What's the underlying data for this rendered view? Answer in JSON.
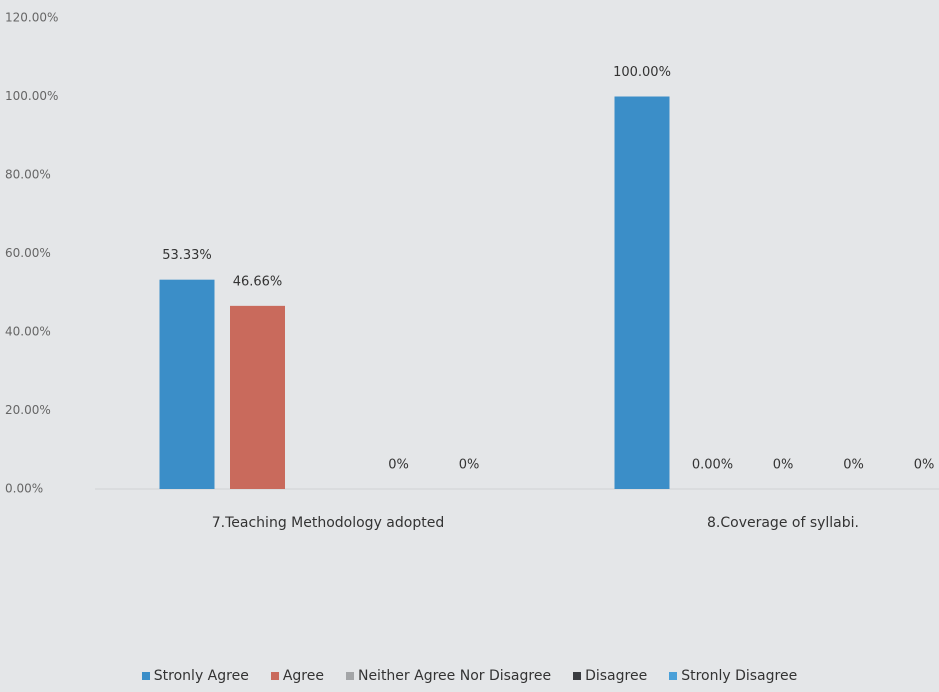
{
  "chart_data": {
    "type": "bar",
    "categories": [
      "7.Teaching Methodology adopted",
      "8.Coverage of syllabi."
    ],
    "series": [
      {
        "name": "Stronly Agree",
        "color": "#3b8ec8",
        "values": [
          53.33,
          100
        ],
        "value_labels": [
          "53.33%",
          "100.00%"
        ]
      },
      {
        "name": "Agree",
        "color": "#c96a5c",
        "values": [
          46.66,
          0
        ],
        "value_labels": [
          "46.66%",
          "0.00%"
        ]
      },
      {
        "name": "Neither Agree Nor Disagree",
        "color": "#a3a5a7",
        "values": [
          0,
          0
        ],
        "value_labels": [
          null,
          "0%"
        ]
      },
      {
        "name": "Disagree",
        "color": "#3a3c40",
        "values": [
          0,
          0
        ],
        "value_labels": [
          "0%",
          "0%"
        ]
      },
      {
        "name": "Stronly Disagree",
        "color": "#4aa0d8",
        "values": [
          0,
          0
        ],
        "value_labels": [
          "0%",
          "0%"
        ]
      }
    ],
    "ylim": [
      0,
      120
    ],
    "yticks": [
      {
        "value": 0,
        "label": "0.00%"
      },
      {
        "value": 20,
        "label": "20.00%"
      },
      {
        "value": 40,
        "label": "40.00%"
      },
      {
        "value": 60,
        "label": "60.00%"
      },
      {
        "value": 80,
        "label": "80.00%"
      },
      {
        "value": 100,
        "label": "100.00%"
      },
      {
        "value": 120,
        "label": "120.00%"
      }
    ]
  }
}
